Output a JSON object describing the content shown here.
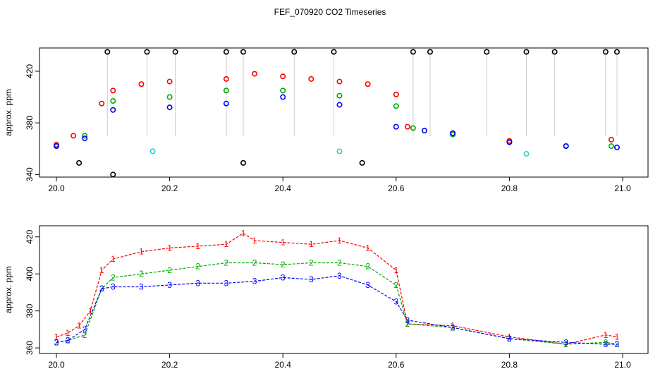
{
  "title": "FEF_070920  CO2 Timeseries",
  "chart_data": [
    {
      "type": "scatter",
      "ylabel": "approx. ppm",
      "xlabel": "",
      "xlim": [
        20.0,
        21.0
      ],
      "ylim": [
        338,
        438
      ],
      "x_ticks": [
        20.0,
        20.2,
        20.4,
        20.6,
        20.8,
        21.0
      ],
      "x_tick_labels": [
        "20.0",
        "20.2",
        "20.4",
        "20.6",
        "20.8",
        "21.0"
      ],
      "y_ticks": [
        340,
        380,
        420
      ],
      "y_tick_labels": [
        "340",
        "380",
        "420"
      ],
      "grid": false,
      "marker": "circle",
      "series": [
        {
          "color": "#000000",
          "points": [
            [
              20.0,
              363
            ],
            [
              20.04,
              349
            ],
            [
              20.09,
              435
            ],
            [
              20.1,
              340
            ],
            [
              20.16,
              435
            ],
            [
              20.21,
              435
            ],
            [
              20.3,
              435
            ],
            [
              20.33,
              435
            ],
            [
              20.33,
              349
            ],
            [
              20.42,
              435
            ],
            [
              20.49,
              435
            ],
            [
              20.54,
              349
            ],
            [
              20.63,
              435
            ],
            [
              20.66,
              435
            ],
            [
              20.76,
              435
            ],
            [
              20.83,
              435
            ],
            [
              20.88,
              435
            ],
            [
              20.97,
              435
            ],
            [
              20.99,
              435
            ]
          ]
        },
        {
          "color": "#ff0000",
          "points": [
            [
              20.0,
              363
            ],
            [
              20.03,
              370
            ],
            [
              20.08,
              395
            ],
            [
              20.1,
              405
            ],
            [
              20.15,
              410
            ],
            [
              20.2,
              412
            ],
            [
              20.3,
              414
            ],
            [
              20.35,
              418
            ],
            [
              20.4,
              416
            ],
            [
              20.45,
              414
            ],
            [
              20.5,
              412
            ],
            [
              20.55,
              410
            ],
            [
              20.6,
              402
            ],
            [
              20.62,
              377
            ],
            [
              20.7,
              372
            ],
            [
              20.8,
              366
            ],
            [
              20.9,
              362
            ],
            [
              20.98,
              367
            ]
          ]
        },
        {
          "color": "#00aa00",
          "points": [
            [
              20.0,
              362
            ],
            [
              20.05,
              370
            ],
            [
              20.1,
              397
            ],
            [
              20.2,
              400
            ],
            [
              20.3,
              405
            ],
            [
              20.4,
              405
            ],
            [
              20.5,
              401
            ],
            [
              20.6,
              393
            ],
            [
              20.63,
              376
            ],
            [
              20.7,
              371
            ],
            [
              20.8,
              365
            ],
            [
              20.9,
              362
            ],
            [
              20.98,
              362
            ]
          ]
        },
        {
          "color": "#0000ff",
          "points": [
            [
              20.0,
              362
            ],
            [
              20.05,
              368
            ],
            [
              20.1,
              390
            ],
            [
              20.2,
              392
            ],
            [
              20.3,
              395
            ],
            [
              20.4,
              400
            ],
            [
              20.5,
              394
            ],
            [
              20.6,
              377
            ],
            [
              20.65,
              374
            ],
            [
              20.7,
              372
            ],
            [
              20.8,
              365
            ],
            [
              20.9,
              362
            ],
            [
              20.99,
              361
            ]
          ]
        },
        {
          "color": "#33cccc",
          "points": [
            [
              20.17,
              358
            ],
            [
              20.5,
              358
            ],
            [
              20.83,
              356
            ]
          ]
        }
      ]
    },
    {
      "type": "line",
      "ylabel": "approx. ppm",
      "xlabel": "",
      "xlim": [
        20.0,
        21.0
      ],
      "ylim": [
        357,
        426
      ],
      "x_ticks": [
        20.0,
        20.2,
        20.4,
        20.6,
        20.8,
        21.0
      ],
      "x_tick_labels": [
        "20.0",
        "20.2",
        "20.4",
        "20.6",
        "20.8",
        "21.0"
      ],
      "y_ticks": [
        360,
        380,
        400,
        420
      ],
      "y_tick_labels": [
        "360",
        "380",
        "400",
        "420"
      ],
      "grid": false,
      "series": [
        {
          "symbol": "1",
          "color": "#ff0000",
          "x": [
            20.0,
            20.02,
            20.04,
            20.06,
            20.08,
            20.1,
            20.15,
            20.2,
            20.25,
            20.3,
            20.33,
            20.35,
            20.4,
            20.45,
            20.5,
            20.55,
            20.6,
            20.62,
            20.7,
            20.8,
            20.9,
            20.97,
            20.99
          ],
          "y": [
            366,
            368,
            372,
            380,
            402,
            408,
            412,
            414,
            415,
            416,
            422,
            418,
            417,
            416,
            418,
            414,
            402,
            373,
            372,
            366,
            362,
            367,
            366
          ]
        },
        {
          "symbol": "2",
          "color": "#00aa00",
          "x": [
            20.0,
            20.02,
            20.05,
            20.08,
            20.1,
            20.15,
            20.2,
            20.25,
            20.3,
            20.35,
            20.4,
            20.45,
            20.5,
            20.55,
            20.6,
            20.62,
            20.7,
            20.8,
            20.9,
            20.97,
            20.99
          ],
          "y": [
            363,
            364,
            367,
            392,
            398,
            400,
            402,
            404,
            406,
            406,
            405,
            406,
            406,
            404,
            394,
            373,
            371,
            365,
            362,
            363,
            362
          ]
        },
        {
          "symbol": "3",
          "color": "#0000ff",
          "x": [
            20.0,
            20.02,
            20.05,
            20.08,
            20.1,
            20.15,
            20.2,
            20.25,
            20.3,
            20.35,
            20.4,
            20.45,
            20.5,
            20.55,
            20.6,
            20.62,
            20.7,
            20.8,
            20.9,
            20.97,
            20.99
          ],
          "y": [
            363,
            364,
            370,
            392,
            393,
            393,
            394,
            395,
            395,
            396,
            398,
            397,
            399,
            394,
            385,
            375,
            371,
            365,
            363,
            362,
            362
          ]
        }
      ]
    }
  ]
}
